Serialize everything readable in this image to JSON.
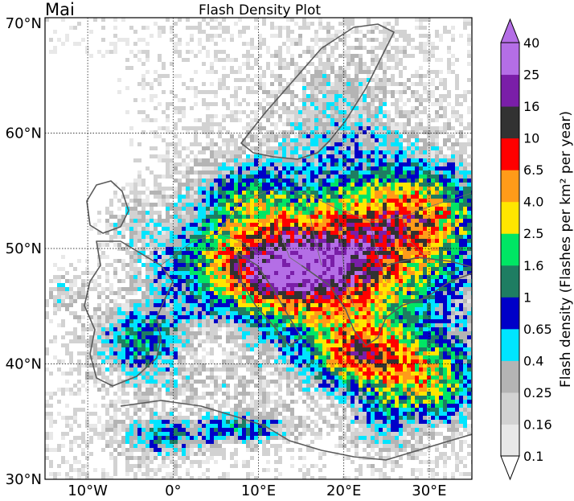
{
  "figure": {
    "month_label": "Mai",
    "title": "Flash Density Plot"
  },
  "map": {
    "lat_labels": [
      "70°N",
      "60°N",
      "50°N",
      "40°N",
      "30°N"
    ],
    "lat_values": [
      70,
      60,
      50,
      40,
      30
    ],
    "lon_labels": [
      "10°W",
      "0°",
      "10°E",
      "20°E",
      "30°E"
    ],
    "lon_values": [
      -10,
      0,
      10,
      20,
      30
    ],
    "extent": {
      "lon": [
        -15,
        35
      ],
      "lat": [
        30,
        70
      ]
    },
    "gridlines": "dotted",
    "colors": {
      "land_outline": "#5a5a5a",
      "country_border": "#6e6e6e"
    }
  },
  "colorbar": {
    "label": "Flash density (Flashes per km² per year)",
    "extend": "both",
    "ticks": [
      "40",
      "25",
      "16",
      "10",
      "6.5",
      "4.0",
      "2.5",
      "1.6",
      "1",
      "0.65",
      "0.4",
      "0.25",
      "0.16",
      "0.1"
    ],
    "bins": [
      {
        "range": "0.1–0.16",
        "color": "#e8e8e8"
      },
      {
        "range": "0.16–0.25",
        "color": "#d2d2d2"
      },
      {
        "range": "0.25–0.4",
        "color": "#b4b4b4"
      },
      {
        "range": "0.4–0.65",
        "color": "#00e5ff"
      },
      {
        "range": "0.65–1",
        "color": "#0000c8"
      },
      {
        "range": "1–1.6",
        "color": "#1e7d62"
      },
      {
        "range": "1.6–2.5",
        "color": "#00e664"
      },
      {
        "range": "2.5–4.0",
        "color": "#ffe600"
      },
      {
        "range": "4.0–6.5",
        "color": "#ff9b19"
      },
      {
        "range": "6.5–10",
        "color": "#ff0000"
      },
      {
        "range": "10–16",
        "color": "#323232"
      },
      {
        "range": "16–25",
        "color": "#7a1ea8"
      },
      {
        "range": "25–40",
        "color": "#b46ee6"
      }
    ],
    "under_color": "#ffffff",
    "over_color": "#b46ee6"
  }
}
